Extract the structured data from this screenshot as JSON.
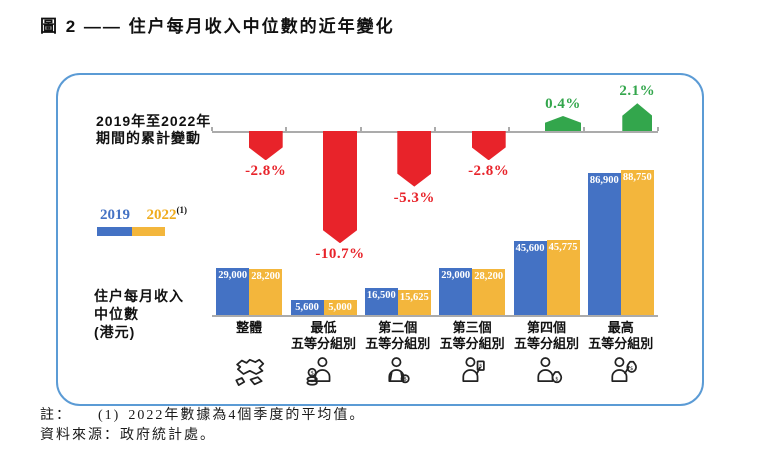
{
  "title": "圖 2 —— 住户每月收入中位數的近年變化",
  "colors": {
    "series_2019": "#4472C4",
    "series_2022": "#F3B63C",
    "legend_2022_text": "#EFAC1E",
    "negative_arrow": "#E8232A",
    "positive_arrow": "#33A64C",
    "box_border": "#5B9BD5",
    "axis_gray": "#ABABAB"
  },
  "annotation": {
    "line1": "2019年至2022年",
    "line2": "期間的累計變動"
  },
  "income_axis_label": {
    "line1": "住户每月收入",
    "line2": "中位數",
    "line3": "(港元)"
  },
  "legend": {
    "label_2019": "2019",
    "label_2022": "2022",
    "superscript": "(1)"
  },
  "chart_data": {
    "type": "bar",
    "title": "住户每月收入中位數的近年變化",
    "ylabel": "住户每月收入中位數 (港元)",
    "unit": "港元 (HKD)",
    "grid": false,
    "legend_position": "left-middle",
    "ylim": [
      0,
      90000
    ],
    "categories": [
      "整體",
      "最低五等分組別",
      "第二個五等分組別",
      "第三個五等分組別",
      "第四個五等分組別",
      "最高五等分組別"
    ],
    "category_labels": [
      [
        "整體"
      ],
      [
        "最低",
        "五等分組別"
      ],
      [
        "第二個",
        "五等分組別"
      ],
      [
        "第三個",
        "五等分組別"
      ],
      [
        "第四個",
        "五等分組別"
      ],
      [
        "最高",
        "五等分組別"
      ]
    ],
    "series": [
      {
        "name": "2019",
        "values": [
          29000,
          5600,
          16500,
          29000,
          45600,
          86900
        ],
        "value_labels": [
          "29,000",
          "5,600",
          "16,500",
          "29,000",
          "45,600",
          "86,900"
        ]
      },
      {
        "name": "2022",
        "values": [
          28200,
          5000,
          15625,
          28200,
          45775,
          88750
        ],
        "value_labels": [
          "28,200",
          "5,000",
          "15,625",
          "28,200",
          "45,775",
          "88,750"
        ]
      }
    ],
    "cumulative_change_2019_2022_pct": [
      -2.8,
      -10.7,
      -5.3,
      -2.8,
      0.4,
      2.1
    ],
    "change_labels": [
      "-2.8%",
      "-10.7%",
      "-5.3%",
      "-2.8%",
      "0.4%",
      "2.1%"
    ],
    "category_icons": [
      "hongkong-map-icon",
      "person-with-coins-icon",
      "person-with-coin-icon",
      "person-with-banknote-icon",
      "person-with-moneybag-icon",
      "person-raising-moneybag-icon"
    ]
  },
  "notes": {
    "note_label": "註：",
    "note_ref": "(1)",
    "note_text": "2022年數據為4個季度的平均值。",
    "source": "資料來源：政府統計處。"
  }
}
